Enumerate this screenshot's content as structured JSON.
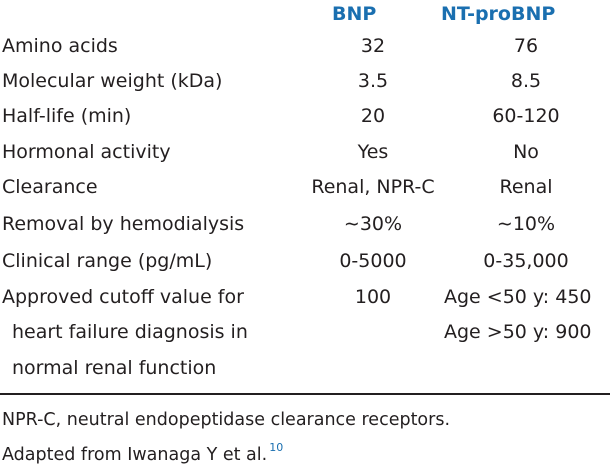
{
  "columns": {
    "bnp": "BNP",
    "ntprobnp": "NT-proBNP"
  },
  "rows": [
    {
      "label": "Amino acids",
      "bnp": "32",
      "nt": "76"
    },
    {
      "label": "Molecular weight (kDa)",
      "bnp": "3.5",
      "nt": "8.5"
    },
    {
      "label": "Half-life (min)",
      "bnp": "20",
      "nt": "60-120"
    },
    {
      "label": "Hormonal activity",
      "bnp": "Yes",
      "nt": "No"
    },
    {
      "label": "Clearance",
      "bnp": "Renal, NPR-C",
      "nt": "Renal"
    },
    {
      "label": "Removal by hemodialysis",
      "bnp": "∼30%",
      "nt": "∼10%"
    },
    {
      "label": "Clinical range (pg/mL)",
      "bnp": "0-5000",
      "nt": "0-35,000"
    },
    {
      "label": "Approved cutoff value for",
      "label_cont1": "heart failure diagnosis in",
      "label_cont2": "normal renal function",
      "bnp": "100",
      "nt": "Age <50 y: 450",
      "nt_cont": "Age >50 y: 900"
    }
  ],
  "footnote": {
    "line1": "NPR-C, neutral endopeptidase clearance receptors.",
    "line2": "Adapted from Iwanaga Y et al.",
    "ref": "10"
  }
}
